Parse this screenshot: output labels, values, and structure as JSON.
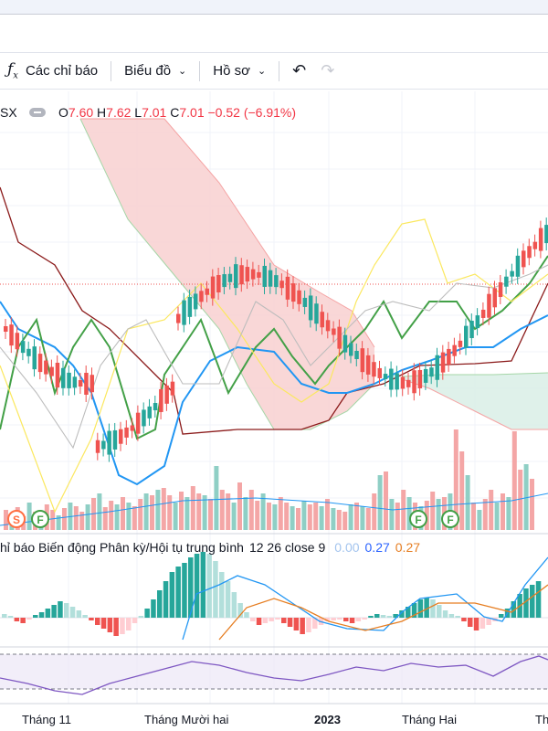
{
  "toolbar": {
    "indicators_label": "Các chỉ báo",
    "chart_label": "Biểu đồ",
    "profile_label": "Hồ sơ"
  },
  "legend": {
    "symbol_fragment": "SX",
    "open_label": "O",
    "open_value": "7.60",
    "high_label": "H",
    "high_value": "7.62",
    "low_label": "L",
    "low_value": "7.01",
    "close_label": "C",
    "close_value": "7.01",
    "change": "−0.52 (−6.91%)"
  },
  "macd": {
    "title": "hỉ báo Biến động Phân kỳ/Hội tụ trung bình",
    "params": "12 26 close 9",
    "hist_value": "0.00",
    "macd_value": "0.27",
    "signal_value": "0.27"
  },
  "markers": [
    "S",
    "F",
    "F",
    "F"
  ],
  "xaxis": [
    "Tháng 11",
    "Tháng Mười hai",
    "2023",
    "Tháng Hai",
    "Th"
  ],
  "colors": {
    "up": "#26a69a",
    "down": "#ef5350",
    "kijun": "#8b1a1a",
    "tenkan": "#2196f3",
    "chikou": "#43a047",
    "cloud_red": "#f8d0d0",
    "cloud_green": "#d9eee6",
    "rsi": "#7e57c2",
    "macd_line": "#2196f3",
    "signal_line": "#e67e22"
  }
}
